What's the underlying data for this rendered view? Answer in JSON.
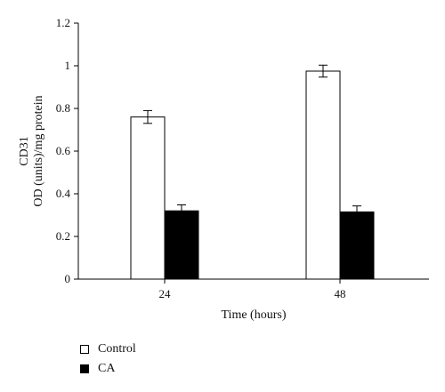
{
  "chart_data": {
    "type": "bar",
    "categories": [
      "24",
      "48"
    ],
    "series": [
      {
        "name": "Control",
        "values": [
          0.76,
          0.975
        ],
        "errors": [
          0.03,
          0.028
        ],
        "color": "#ffffff"
      },
      {
        "name": "CA",
        "values": [
          0.32,
          0.315
        ],
        "errors": [
          0.028,
          0.028
        ],
        "color": "#000000"
      }
    ],
    "xlabel": "Time (hours)",
    "ylabel_line1": "CD31",
    "ylabel_line2": "OD (units)/mg protein",
    "ylim": [
      0,
      1.2
    ],
    "yticks": [
      "0",
      "0.2",
      "0.4",
      "0.6",
      "0.8",
      "1",
      "1.2"
    ],
    "grid": false,
    "legend_placement": "bottom-left"
  }
}
